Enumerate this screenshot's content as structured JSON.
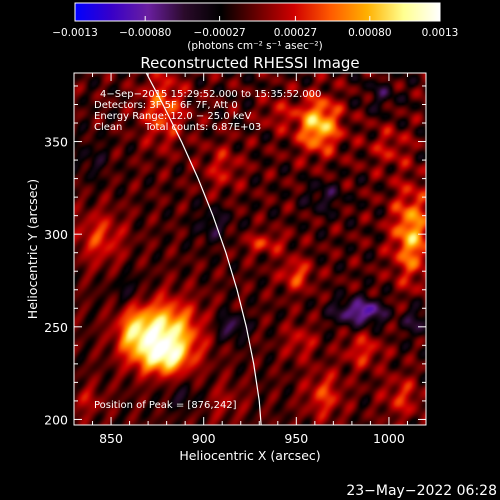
{
  "chart_data": {
    "type": "heatmap",
    "title": "Reconstructed RHESSI Image",
    "xlabel": "Heliocentric X (arcsec)",
    "ylabel": "Heliocentric Y (arcsec)",
    "xlim": [
      830,
      1020
    ],
    "ylim": [
      197,
      387
    ],
    "x_ticks": [
      850,
      900,
      950,
      1000
    ],
    "y_ticks": [
      200,
      250,
      300,
      350
    ],
    "x_tick_labels": [
      "850",
      "900",
      "950",
      "1000"
    ],
    "y_tick_labels": [
      "200",
      "250",
      "300",
      "350"
    ],
    "colorbar": {
      "range": [
        -0.0013,
        0.0013
      ],
      "ticks": [
        -0.0013,
        -0.0008,
        -0.00027,
        0.00027,
        0.0008,
        0.0013
      ],
      "tick_labels": [
        "−0.0013",
        "−0.00080",
        "−0.00027",
        "0.00027",
        "0.00080",
        "0.0013"
      ],
      "unit_label": "(photons cm⁻² s⁻¹ asec⁻²)",
      "colormap": [
        "#0000ff",
        "#3800c8",
        "#6a1fa0",
        "#2a0a2a",
        "#000000",
        "#6a0000",
        "#d00000",
        "#ff5a00",
        "#ffb000",
        "#ffff90",
        "#ffffff"
      ]
    },
    "annotations": {
      "time": "4−Sep−2015 15:29:52.000 to 15:35:52.000",
      "detectors": "Detectors: 3F 5F 6F 7F, Att 0",
      "energy": "Energy Range: 12.0 − 25.0 keV",
      "method": "Clean",
      "counts": "Total counts: 6.87E+03",
      "peak": "Position of Peak = [876,242]"
    },
    "peak": {
      "x": 876,
      "y": 242
    },
    "sources": [
      {
        "x": 878,
        "y": 246,
        "sx": 13,
        "sy": 12,
        "amp": 1.3
      },
      {
        "x": 879,
        "y": 233,
        "sx": 9,
        "sy": 6,
        "amp": 0.7
      },
      {
        "x": 862,
        "y": 246,
        "sx": 6,
        "sy": 9,
        "amp": 0.55
      },
      {
        "x": 962,
        "y": 359,
        "sx": 8,
        "sy": 10,
        "amp": 1.05
      },
      {
        "x": 1012,
        "y": 300,
        "sx": 7,
        "sy": 17,
        "amp": 0.9
      },
      {
        "x": 878,
        "y": 368,
        "sx": 8,
        "sy": 13,
        "amp": 0.6
      },
      {
        "x": 844,
        "y": 298,
        "sx": 9,
        "sy": 10,
        "amp": 0.5
      },
      {
        "x": 950,
        "y": 278,
        "sx": 6,
        "sy": 6,
        "amp": 0.55
      },
      {
        "x": 965,
        "y": 213,
        "sx": 7,
        "sy": 9,
        "amp": 0.5
      },
      {
        "x": 986,
        "y": 237,
        "sx": 7,
        "sy": 7,
        "amp": 0.45
      },
      {
        "x": 933,
        "y": 295,
        "sx": 8,
        "sy": 4,
        "amp": 0.45
      },
      {
        "x": 910,
        "y": 336,
        "sx": 7,
        "sy": 9,
        "amp": 0.35
      },
      {
        "x": 1007,
        "y": 212,
        "sx": 7,
        "sy": 8,
        "amp": 0.42
      },
      {
        "x": 940,
        "y": 365,
        "sx": 6,
        "sy": 6,
        "amp": 0.3
      },
      {
        "x": 952,
        "y": 242,
        "sx": 6,
        "sy": 7,
        "amp": 0.35
      },
      {
        "x": 910,
        "y": 210,
        "sx": 8,
        "sy": 7,
        "amp": 0.25
      },
      {
        "x": 838,
        "y": 210,
        "sx": 6,
        "sy": 6,
        "amp": 0.3
      },
      {
        "x": 1000,
        "y": 347,
        "sx": 8,
        "sy": 8,
        "amp": 0.32
      },
      {
        "x": 915,
        "y": 250,
        "sx": 6,
        "sy": 5,
        "amp": -0.55
      },
      {
        "x": 978,
        "y": 258,
        "sx": 7,
        "sy": 5,
        "amp": -0.55
      },
      {
        "x": 990,
        "y": 258,
        "sx": 6,
        "sy": 5,
        "amp": -0.65
      },
      {
        "x": 905,
        "y": 305,
        "sx": 7,
        "sy": 7,
        "amp": -0.35
      },
      {
        "x": 965,
        "y": 320,
        "sx": 7,
        "sy": 6,
        "amp": -0.35
      },
      {
        "x": 1015,
        "y": 253,
        "sx": 5,
        "sy": 6,
        "amp": -0.45
      },
      {
        "x": 860,
        "y": 270,
        "sx": 7,
        "sy": 6,
        "amp": -0.3
      },
      {
        "x": 890,
        "y": 212,
        "sx": 8,
        "sy": 5,
        "amp": -0.3
      },
      {
        "x": 996,
        "y": 375,
        "sx": 6,
        "sy": 6,
        "amp": -0.3
      },
      {
        "x": 840,
        "y": 340,
        "sx": 6,
        "sy": 8,
        "amp": -0.25
      }
    ],
    "limb": [
      {
        "x": 869,
        "y": 387
      },
      {
        "x": 878,
        "y": 370
      },
      {
        "x": 888,
        "y": 350
      },
      {
        "x": 897,
        "y": 330
      },
      {
        "x": 905,
        "y": 310
      },
      {
        "x": 912,
        "y": 290
      },
      {
        "x": 918,
        "y": 270
      },
      {
        "x": 923,
        "y": 250
      },
      {
        "x": 927,
        "y": 230
      },
      {
        "x": 930,
        "y": 210
      },
      {
        "x": 931,
        "y": 197
      }
    ]
  },
  "footer": {
    "timestamp": "23−May−2022 06:28"
  }
}
